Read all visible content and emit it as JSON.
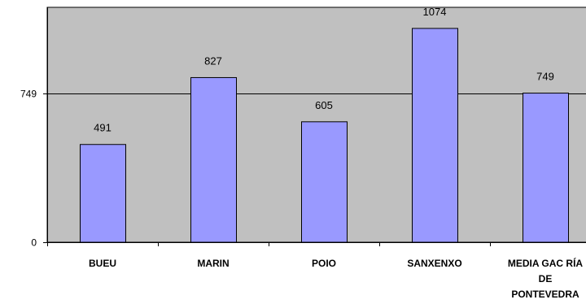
{
  "chart_data": {
    "type": "bar",
    "categories": [
      "BUEU",
      "MARIN",
      "POIO",
      "SANXENXO",
      "MEDIA GAC RÍA DE PONTEVEDRA"
    ],
    "category_lines": [
      [
        "BUEU"
      ],
      [
        "MARIN"
      ],
      [
        "POIO"
      ],
      [
        "SANXENXO"
      ],
      [
        "MEDIA GAC RÍA",
        "DE",
        "PONTEVEDRA"
      ]
    ],
    "values": [
      491,
      827,
      605,
      1074,
      749
    ],
    "data_labels": [
      "491",
      "827",
      "605",
      "1074",
      "749"
    ],
    "y_ticks": [
      0,
      749
    ],
    "y_tick_labels": [
      "0",
      "749"
    ],
    "ylim": [
      0,
      1180
    ],
    "gridlines_at": [
      749
    ],
    "grid": true,
    "legend": "none",
    "title": "",
    "xlabel": "",
    "ylabel": "",
    "colors": {
      "plot_background": "#c0c0c0",
      "bar_fill": "#9999ff",
      "bar_stroke": "#000000",
      "axis": "#000000"
    }
  }
}
